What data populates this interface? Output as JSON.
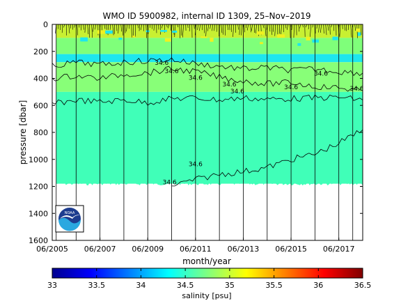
{
  "chart_data": {
    "type": "heatmap",
    "title": "WMO ID 5900982, internal ID 1309, 25–Nov–2019",
    "xlabel": "month/year",
    "ylabel": "pressure [dbar]",
    "x_ticks": [
      "06/2005",
      "06/2007",
      "06/2009",
      "06/2011",
      "06/2013",
      "06/2015",
      "06/2017"
    ],
    "x_range": [
      "2005-06",
      "2018-06"
    ],
    "y_ticks": [
      0,
      200,
      400,
      600,
      800,
      1000,
      1200,
      1400,
      1600
    ],
    "y_range": [
      0,
      1600
    ],
    "y_reversed": true,
    "profile_lines": [
      "2005-08",
      "2006-06",
      "2007-06",
      "2008-06",
      "2009-06",
      "2010-06",
      "2011-06",
      "2012-06",
      "2013-06",
      "2014-06",
      "2015-06",
      "2016-06",
      "2017-06",
      "2018-01"
    ],
    "colorbar": {
      "label": "salinity [psu]",
      "ticks": [
        33,
        33.5,
        34,
        34.5,
        35,
        35.5,
        36,
        36.5
      ],
      "range": [
        33,
        36.5
      ],
      "colormap": "jet"
    },
    "salinity_layers": [
      {
        "from_dbar": 0,
        "to_dbar": 100,
        "salinity": 35.0,
        "color": "#c8f032"
      },
      {
        "from_dbar": 100,
        "to_dbar": 220,
        "salinity": 34.75,
        "color": "#7fff7a"
      },
      {
        "from_dbar": 220,
        "to_dbar": 280,
        "salinity": 34.35,
        "color": "#1ee6ee"
      },
      {
        "from_dbar": 280,
        "to_dbar": 500,
        "salinity": 34.75,
        "color": "#88ff78"
      },
      {
        "from_dbar": 500,
        "to_dbar": 1180,
        "salinity": 34.6,
        "color": "#40ffb8"
      }
    ],
    "contours": [
      {
        "level": 34.6,
        "points": [
          [
            "2005-06",
            590
          ],
          [
            "2006-06",
            560
          ],
          [
            "2007-06",
            575
          ],
          [
            "2008-06",
            560
          ],
          [
            "2009-06",
            580
          ],
          [
            "2010-06",
            550
          ],
          [
            "2011-06",
            545
          ],
          [
            "2012-06",
            560
          ],
          [
            "2013-06",
            545
          ],
          [
            "2014-06",
            555
          ],
          [
            "2015-06",
            550
          ],
          [
            "2016-06",
            545
          ],
          [
            "2017-06",
            540
          ],
          [
            "2018-06",
            560
          ]
        ]
      },
      {
        "level": 34.6,
        "points": [
          [
            "2010-06",
            1195
          ],
          [
            "2011-06",
            1150
          ],
          [
            "2012-06",
            1110
          ],
          [
            "2013-06",
            1090
          ],
          [
            "2014-06",
            1060
          ],
          [
            "2015-06",
            1000
          ],
          [
            "2016-06",
            960
          ],
          [
            "2017-06",
            880
          ],
          [
            "2018-06",
            780
          ]
        ]
      },
      {
        "level": 34.6,
        "points": [
          [
            "2005-06",
            400
          ],
          [
            "2006-06",
            380
          ],
          [
            "2007-06",
            400
          ],
          [
            "2008-06",
            370
          ],
          [
            "2009-06",
            360
          ],
          [
            "2010-06",
            330
          ],
          [
            "2011-06",
            350
          ],
          [
            "2012-06",
            390
          ],
          [
            "2013-06",
            420
          ],
          [
            "2014-06",
            440
          ],
          [
            "2015-06",
            430
          ],
          [
            "2016-06",
            460
          ],
          [
            "2017-06",
            470
          ],
          [
            "2018-06",
            490
          ]
        ]
      },
      {
        "level": 34.6,
        "points": [
          [
            "2005-06",
            310
          ],
          [
            "2006-06",
            280
          ],
          [
            "2007-06",
            300
          ],
          [
            "2008-06",
            280
          ],
          [
            "2009-06",
            270
          ],
          [
            "2010-06",
            260
          ],
          [
            "2011-06",
            290
          ],
          [
            "2012-06",
            310
          ],
          [
            "2013-06",
            330
          ],
          [
            "2014-06",
            320
          ],
          [
            "2015-06",
            340
          ],
          [
            "2016-06",
            330
          ],
          [
            "2017-06",
            350
          ],
          [
            "2018-06",
            360
          ]
        ]
      }
    ],
    "contour_labels": [
      {
        "text": "34.6",
        "x": "2010-01",
        "y": 300
      },
      {
        "text": "34.6",
        "x": "2010-06",
        "y": 360
      },
      {
        "text": "34.6",
        "x": "2011-06",
        "y": 410
      },
      {
        "text": "34.6",
        "x": "2012-11",
        "y": 460
      },
      {
        "text": "34.6",
        "x": "2013-03",
        "y": 510
      },
      {
        "text": "34.6",
        "x": "2015-06",
        "y": 480
      },
      {
        "text": "34.6",
        "x": "2016-09",
        "y": 380
      },
      {
        "text": "34.6",
        "x": "2018-03",
        "y": 490
      },
      {
        "text": "34.6",
        "x": "2011-06",
        "y": 1050
      },
      {
        "text": "34.6",
        "x": "2010-05",
        "y": 1185
      }
    ]
  },
  "logo": {
    "text": "NOAA"
  }
}
